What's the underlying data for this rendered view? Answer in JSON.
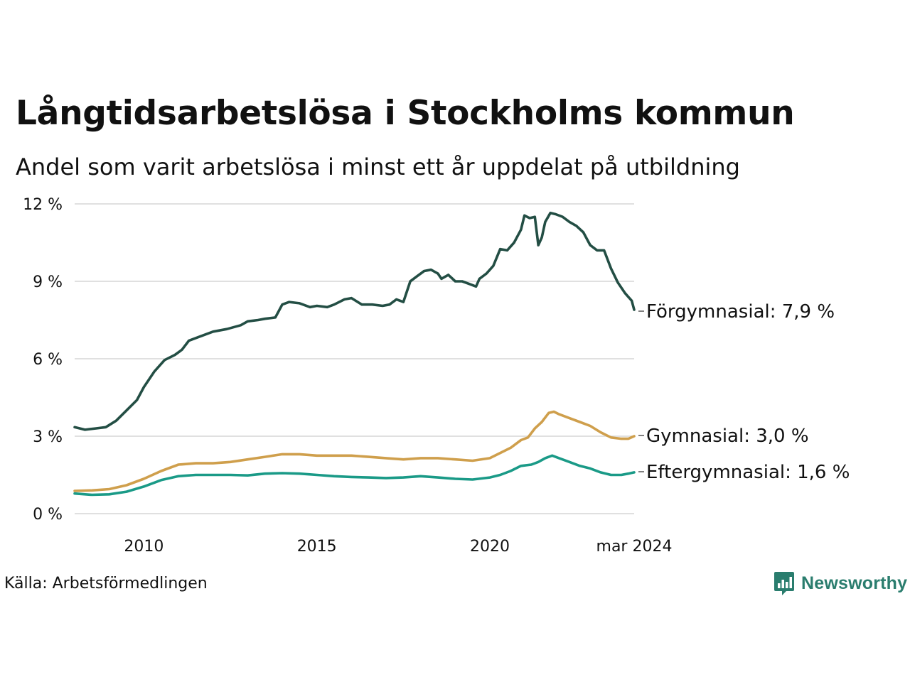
{
  "title": "Långtidsarbetslösa i Stockholms kommun",
  "subtitle": "Andel som varit arbetslösa i minst ett år uppdelat på utbildning",
  "source": "Källa: Arbetsförmedlingen",
  "brand": "Newsworthy",
  "colors": {
    "forgymnasial": "#234e44",
    "gymnasial": "#cf9f4c",
    "eftergymnasial": "#1a9a87",
    "grid": "#e0e0e0",
    "brand": "#2a7d6e"
  },
  "chart_data": {
    "type": "line",
    "title": "Långtidsarbetslösa i Stockholms kommun",
    "ylabel": "",
    "xlabel": "",
    "ylim": [
      0,
      12
    ],
    "xlim": [
      2008.0,
      2024.17
    ],
    "yticks": [
      {
        "value": 0,
        "label": "0 %"
      },
      {
        "value": 3,
        "label": "3 %"
      },
      {
        "value": 6,
        "label": "6 %"
      },
      {
        "value": 9,
        "label": "9 %"
      },
      {
        "value": 12,
        "label": "12 %"
      }
    ],
    "xticks": [
      {
        "value": 2010,
        "label": "2010"
      },
      {
        "value": 2015,
        "label": "2015"
      },
      {
        "value": 2020,
        "label": "2020"
      },
      {
        "value": 2024.17,
        "label": "mar 2024"
      }
    ],
    "series": [
      {
        "name": "Förgymnasial",
        "label": "Förgymnasial: 7,9 %",
        "color": "#234e44",
        "points": [
          [
            2008.0,
            3.35
          ],
          [
            2008.3,
            3.25
          ],
          [
            2008.6,
            3.3
          ],
          [
            2008.9,
            3.35
          ],
          [
            2009.2,
            3.6
          ],
          [
            2009.5,
            4.0
          ],
          [
            2009.8,
            4.4
          ],
          [
            2010.0,
            4.9
          ],
          [
            2010.3,
            5.5
          ],
          [
            2010.6,
            5.95
          ],
          [
            2010.9,
            6.15
          ],
          [
            2011.1,
            6.35
          ],
          [
            2011.3,
            6.7
          ],
          [
            2011.6,
            6.85
          ],
          [
            2012.0,
            7.05
          ],
          [
            2012.4,
            7.15
          ],
          [
            2012.8,
            7.3
          ],
          [
            2013.0,
            7.45
          ],
          [
            2013.3,
            7.5
          ],
          [
            2013.5,
            7.55
          ],
          [
            2013.8,
            7.6
          ],
          [
            2014.0,
            8.1
          ],
          [
            2014.2,
            8.2
          ],
          [
            2014.5,
            8.15
          ],
          [
            2014.8,
            8.0
          ],
          [
            2015.0,
            8.05
          ],
          [
            2015.3,
            8.0
          ],
          [
            2015.5,
            8.1
          ],
          [
            2015.8,
            8.3
          ],
          [
            2016.0,
            8.35
          ],
          [
            2016.3,
            8.1
          ],
          [
            2016.6,
            8.1
          ],
          [
            2016.9,
            8.05
          ],
          [
            2017.1,
            8.1
          ],
          [
            2017.3,
            8.3
          ],
          [
            2017.5,
            8.2
          ],
          [
            2017.7,
            9.0
          ],
          [
            2017.9,
            9.2
          ],
          [
            2018.1,
            9.4
          ],
          [
            2018.3,
            9.45
          ],
          [
            2018.5,
            9.3
          ],
          [
            2018.6,
            9.1
          ],
          [
            2018.8,
            9.25
          ],
          [
            2019.0,
            9.0
          ],
          [
            2019.2,
            9.0
          ],
          [
            2019.4,
            8.9
          ],
          [
            2019.6,
            8.8
          ],
          [
            2019.7,
            9.1
          ],
          [
            2019.9,
            9.3
          ],
          [
            2020.1,
            9.6
          ],
          [
            2020.3,
            10.25
          ],
          [
            2020.5,
            10.2
          ],
          [
            2020.7,
            10.5
          ],
          [
            2020.9,
            11.0
          ],
          [
            2021.0,
            11.55
          ],
          [
            2021.15,
            11.45
          ],
          [
            2021.3,
            11.5
          ],
          [
            2021.4,
            10.4
          ],
          [
            2021.5,
            10.7
          ],
          [
            2021.6,
            11.3
          ],
          [
            2021.75,
            11.65
          ],
          [
            2021.9,
            11.6
          ],
          [
            2022.1,
            11.5
          ],
          [
            2022.3,
            11.3
          ],
          [
            2022.5,
            11.15
          ],
          [
            2022.7,
            10.9
          ],
          [
            2022.9,
            10.4
          ],
          [
            2023.1,
            10.2
          ],
          [
            2023.3,
            10.2
          ],
          [
            2023.5,
            9.5
          ],
          [
            2023.7,
            8.95
          ],
          [
            2023.9,
            8.55
          ],
          [
            2024.0,
            8.4
          ],
          [
            2024.1,
            8.25
          ],
          [
            2024.17,
            7.9
          ]
        ]
      },
      {
        "name": "Gymnasial",
        "label": "Gymnasial: 3,0 %",
        "color": "#cf9f4c",
        "points": [
          [
            2008.0,
            0.88
          ],
          [
            2008.5,
            0.9
          ],
          [
            2009.0,
            0.95
          ],
          [
            2009.5,
            1.1
          ],
          [
            2010.0,
            1.35
          ],
          [
            2010.5,
            1.65
          ],
          [
            2011.0,
            1.9
          ],
          [
            2011.5,
            1.95
          ],
          [
            2012.0,
            1.95
          ],
          [
            2012.5,
            2.0
          ],
          [
            2013.0,
            2.1
          ],
          [
            2013.5,
            2.2
          ],
          [
            2014.0,
            2.3
          ],
          [
            2014.5,
            2.3
          ],
          [
            2015.0,
            2.25
          ],
          [
            2015.5,
            2.25
          ],
          [
            2016.0,
            2.25
          ],
          [
            2016.5,
            2.2
          ],
          [
            2017.0,
            2.15
          ],
          [
            2017.5,
            2.1
          ],
          [
            2018.0,
            2.15
          ],
          [
            2018.5,
            2.15
          ],
          [
            2019.0,
            2.1
          ],
          [
            2019.5,
            2.05
          ],
          [
            2020.0,
            2.15
          ],
          [
            2020.3,
            2.35
          ],
          [
            2020.6,
            2.55
          ],
          [
            2020.9,
            2.85
          ],
          [
            2021.1,
            2.95
          ],
          [
            2021.3,
            3.3
          ],
          [
            2021.5,
            3.55
          ],
          [
            2021.7,
            3.9
          ],
          [
            2021.85,
            3.95
          ],
          [
            2022.0,
            3.85
          ],
          [
            2022.3,
            3.7
          ],
          [
            2022.6,
            3.55
          ],
          [
            2022.9,
            3.4
          ],
          [
            2023.2,
            3.15
          ],
          [
            2023.5,
            2.95
          ],
          [
            2023.8,
            2.9
          ],
          [
            2024.0,
            2.9
          ],
          [
            2024.17,
            3.0
          ]
        ]
      },
      {
        "name": "Eftergymnasial",
        "label": "Eftergymnasial: 1,6 %",
        "color": "#1a9a87",
        "points": [
          [
            2008.0,
            0.78
          ],
          [
            2008.5,
            0.73
          ],
          [
            2009.0,
            0.75
          ],
          [
            2009.5,
            0.85
          ],
          [
            2010.0,
            1.05
          ],
          [
            2010.5,
            1.3
          ],
          [
            2011.0,
            1.45
          ],
          [
            2011.5,
            1.5
          ],
          [
            2012.0,
            1.5
          ],
          [
            2012.5,
            1.5
          ],
          [
            2013.0,
            1.48
          ],
          [
            2013.5,
            1.55
          ],
          [
            2014.0,
            1.57
          ],
          [
            2014.5,
            1.55
          ],
          [
            2015.0,
            1.5
          ],
          [
            2015.5,
            1.45
          ],
          [
            2016.0,
            1.42
          ],
          [
            2016.5,
            1.4
          ],
          [
            2017.0,
            1.38
          ],
          [
            2017.5,
            1.4
          ],
          [
            2018.0,
            1.45
          ],
          [
            2018.5,
            1.4
          ],
          [
            2019.0,
            1.35
          ],
          [
            2019.5,
            1.32
          ],
          [
            2020.0,
            1.4
          ],
          [
            2020.3,
            1.5
          ],
          [
            2020.6,
            1.65
          ],
          [
            2020.9,
            1.85
          ],
          [
            2021.2,
            1.9
          ],
          [
            2021.4,
            2.0
          ],
          [
            2021.6,
            2.15
          ],
          [
            2021.8,
            2.25
          ],
          [
            2022.0,
            2.15
          ],
          [
            2022.3,
            2.0
          ],
          [
            2022.6,
            1.85
          ],
          [
            2022.9,
            1.75
          ],
          [
            2023.2,
            1.6
          ],
          [
            2023.5,
            1.5
          ],
          [
            2023.8,
            1.5
          ],
          [
            2024.0,
            1.55
          ],
          [
            2024.17,
            1.6
          ]
        ]
      }
    ]
  }
}
